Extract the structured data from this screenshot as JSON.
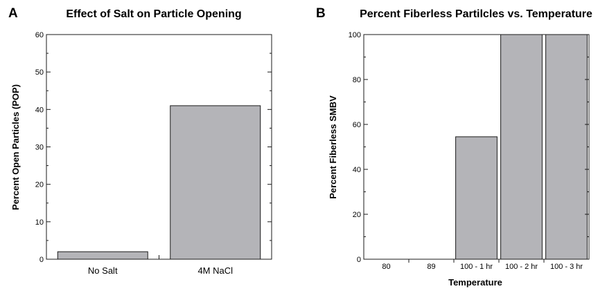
{
  "chart_data": [
    {
      "panel_letter": "A",
      "type": "bar",
      "title": "Effect of Salt on Particle Opening",
      "xlabel": "",
      "ylabel": "Percent Open Particles (POP)",
      "categories": [
        "No Salt",
        "4M NaCl"
      ],
      "values": [
        2,
        41
      ],
      "ylim": [
        0,
        60
      ],
      "yticks": [
        0,
        10,
        20,
        30,
        40,
        50,
        60
      ],
      "grid": false,
      "bar_color": "#b4b4b8"
    },
    {
      "panel_letter": "B",
      "type": "bar",
      "title": "Percent Fiberless Partilcles vs. Temperature",
      "xlabel": "Temperature",
      "ylabel": "Percent Fiberless SMBV",
      "categories": [
        "80",
        "89",
        "100 - 1 hr",
        "100 - 2 hr",
        "100 - 3 hr"
      ],
      "values": [
        0,
        0,
        54.5,
        100,
        100
      ],
      "ylim": [
        0,
        100
      ],
      "yticks": [
        0,
        20,
        40,
        60,
        80,
        100
      ],
      "grid": false,
      "bar_color": "#b4b4b8"
    }
  ]
}
